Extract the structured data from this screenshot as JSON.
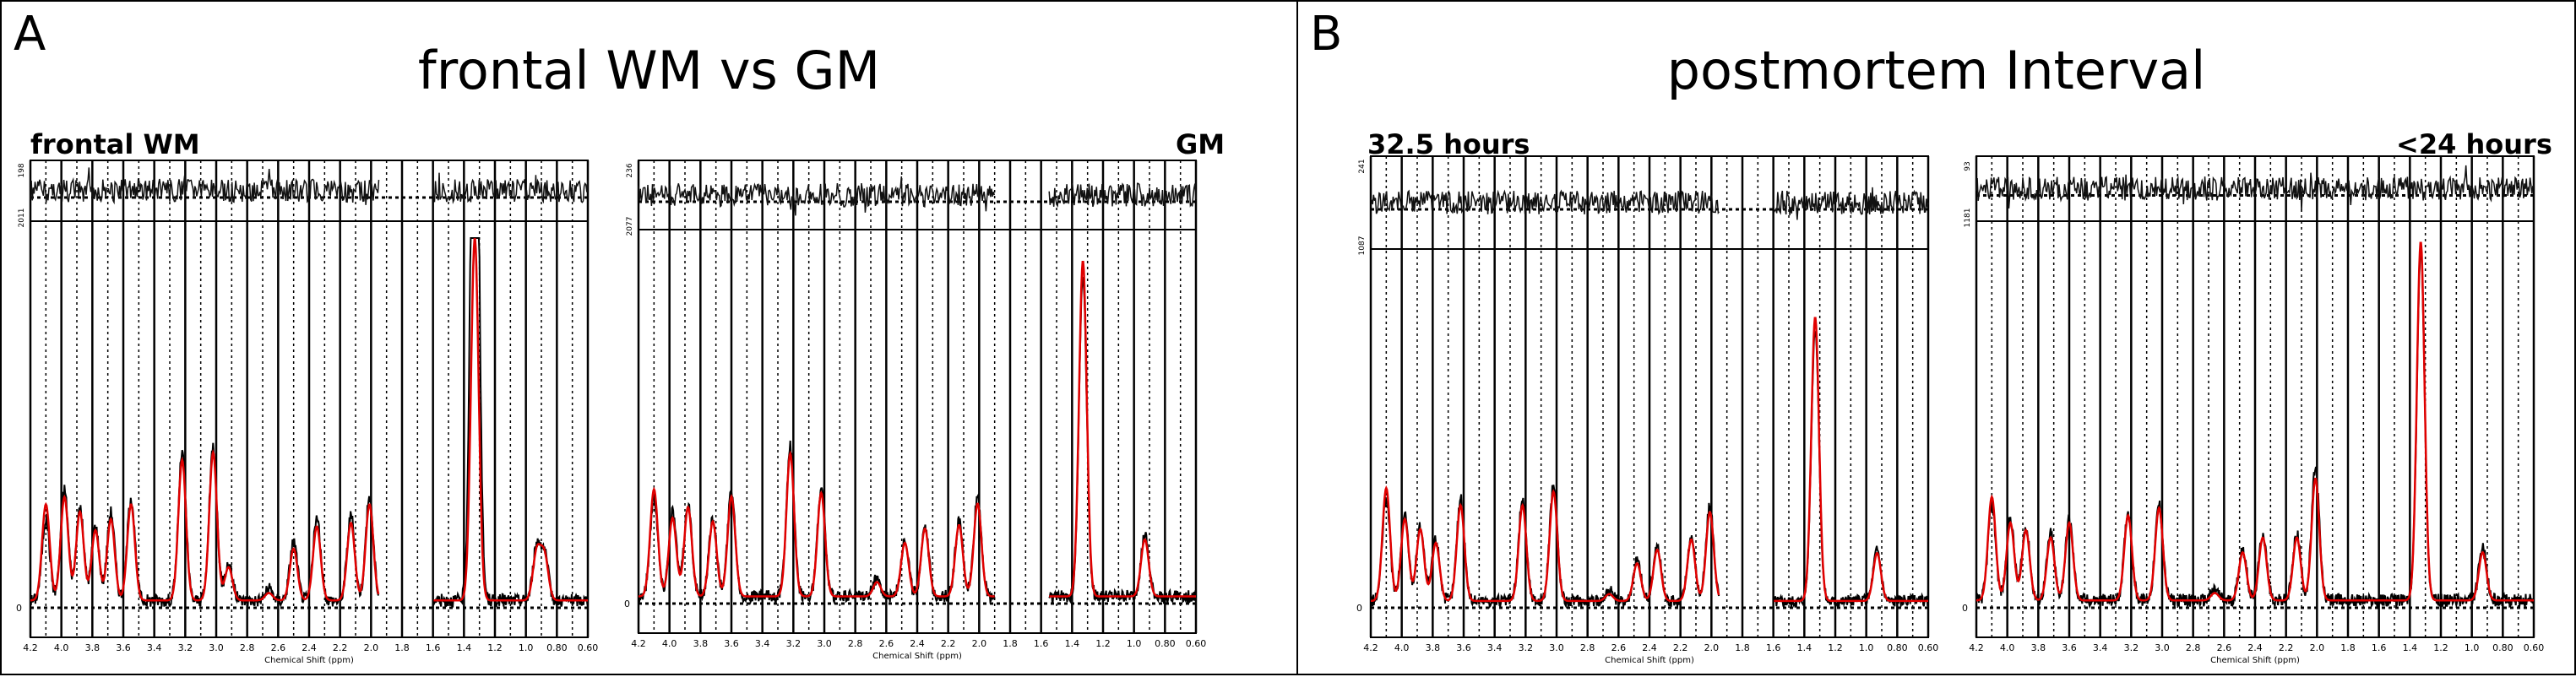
{
  "panels": [
    {
      "letter": "A",
      "title": "frontal WM vs GM"
    },
    {
      "letter": "B",
      "title": "postmortem Interval"
    }
  ],
  "chart_data": [
    {
      "type": "line",
      "subtitle": "frontal WM",
      "xlabel": "Chemical Shift (ppm)",
      "xlim": [
        4.2,
        0.6
      ],
      "x_ticks": [
        "4.2",
        "4.0",
        "3.8",
        "3.6",
        "3.4",
        "3.2",
        "3.0",
        "2.8",
        "2.6",
        "2.4",
        "2.2",
        "2.0",
        "1.8",
        "1.6",
        "1.4",
        "1.2",
        "1.0",
        "0.80",
        "0.60"
      ],
      "residual_ticks": [
        "198",
        "2011"
      ],
      "y_ticks": [
        "0"
      ],
      "gap": [
        1.95,
        1.6
      ],
      "series": [
        {
          "color": "#000000",
          "peaks": [
            [
              4.1,
              0.22
            ],
            [
              3.98,
              0.3
            ],
            [
              3.88,
              0.25
            ],
            [
              3.78,
              0.2
            ],
            [
              3.68,
              0.24
            ],
            [
              3.55,
              0.28
            ],
            [
              3.22,
              0.4
            ],
            [
              3.02,
              0.42
            ],
            [
              2.92,
              0.1
            ],
            [
              2.66,
              0.03
            ],
            [
              2.5,
              0.16
            ],
            [
              2.35,
              0.22
            ],
            [
              2.13,
              0.23
            ],
            [
              2.01,
              0.28
            ],
            [
              1.33,
              0.96
            ],
            [
              1.33,
              0.96
            ],
            [
              0.93,
              0.14
            ],
            [
              0.88,
              0.12
            ]
          ]
        },
        {
          "color": "#e00000",
          "peaks": [
            [
              4.1,
              0.26
            ],
            [
              3.98,
              0.28
            ],
            [
              3.88,
              0.24
            ],
            [
              3.78,
              0.19
            ],
            [
              3.68,
              0.22
            ],
            [
              3.55,
              0.26
            ],
            [
              3.22,
              0.38
            ],
            [
              3.02,
              0.4
            ],
            [
              2.92,
              0.09
            ],
            [
              2.66,
              0.02
            ],
            [
              2.5,
              0.14
            ],
            [
              2.35,
              0.2
            ],
            [
              2.13,
              0.21
            ],
            [
              2.01,
              0.26
            ],
            [
              1.33,
              0.98
            ],
            [
              0.93,
              0.13
            ],
            [
              0.88,
              0.12
            ]
          ]
        }
      ]
    },
    {
      "type": "line",
      "subtitle": "GM",
      "xlabel": "Chemical Shift (ppm)",
      "xlim": [
        4.2,
        0.6
      ],
      "x_ticks": [
        "4.2",
        "4.0",
        "3.8",
        "3.6",
        "3.4",
        "3.2",
        "3.0",
        "2.8",
        "2.6",
        "2.4",
        "2.2",
        "2.0",
        "1.8",
        "1.6",
        "1.4",
        "1.2",
        "1.0",
        "0.80",
        "0.60"
      ],
      "residual_ticks": [
        "236",
        "2077"
      ],
      "y_ticks": [
        "0"
      ],
      "gap": [
        1.9,
        1.55
      ],
      "series": [
        {
          "color": "#000000",
          "peaks": [
            [
              4.1,
              0.28
            ],
            [
              3.98,
              0.24
            ],
            [
              3.88,
              0.26
            ],
            [
              3.72,
              0.22
            ],
            [
              3.6,
              0.3
            ],
            [
              3.22,
              0.42
            ],
            [
              3.02,
              0.3
            ],
            [
              2.66,
              0.05
            ],
            [
              2.48,
              0.16
            ],
            [
              2.35,
              0.2
            ],
            [
              2.13,
              0.21
            ],
            [
              2.01,
              0.28
            ],
            [
              1.33,
              0.9
            ],
            [
              0.93,
              0.17
            ]
          ]
        },
        {
          "color": "#e00000",
          "peaks": [
            [
              4.1,
              0.3
            ],
            [
              3.98,
              0.22
            ],
            [
              3.88,
              0.25
            ],
            [
              3.72,
              0.21
            ],
            [
              3.6,
              0.28
            ],
            [
              3.22,
              0.4
            ],
            [
              3.02,
              0.29
            ],
            [
              2.66,
              0.04
            ],
            [
              2.48,
              0.15
            ],
            [
              2.35,
              0.19
            ],
            [
              2.13,
              0.2
            ],
            [
              2.01,
              0.26
            ],
            [
              1.33,
              0.94
            ],
            [
              0.93,
              0.16
            ]
          ]
        }
      ]
    },
    {
      "type": "line",
      "subtitle": "32.5 hours",
      "xlabel": "Chemical Shift (ppm)",
      "xlim": [
        4.2,
        0.6
      ],
      "x_ticks": [
        "4.2",
        "4.0",
        "3.8",
        "3.6",
        "3.4",
        "3.2",
        "3.0",
        "2.8",
        "2.6",
        "2.4",
        "2.2",
        "2.0",
        "1.8",
        "1.6",
        "1.4",
        "1.2",
        "1.0",
        "0.80",
        "0.60"
      ],
      "residual_ticks": [
        "241",
        "1087"
      ],
      "y_ticks": [
        "0"
      ],
      "gap": [
        1.95,
        1.6
      ],
      "series": [
        {
          "color": "#000000",
          "peaks": [
            [
              4.1,
              0.3
            ],
            [
              3.98,
              0.25
            ],
            [
              3.88,
              0.22
            ],
            [
              3.78,
              0.18
            ],
            [
              3.62,
              0.3
            ],
            [
              3.22,
              0.3
            ],
            [
              3.02,
              0.34
            ],
            [
              2.66,
              0.03
            ],
            [
              2.48,
              0.12
            ],
            [
              2.35,
              0.16
            ],
            [
              2.13,
              0.19
            ],
            [
              2.01,
              0.28
            ],
            [
              1.33,
              0.8
            ],
            [
              0.93,
              0.15
            ]
          ]
        },
        {
          "color": "#e00000",
          "peaks": [
            [
              4.1,
              0.33
            ],
            [
              3.98,
              0.24
            ],
            [
              3.88,
              0.21
            ],
            [
              3.78,
              0.17
            ],
            [
              3.62,
              0.28
            ],
            [
              3.22,
              0.28
            ],
            [
              3.02,
              0.32
            ],
            [
              2.66,
              0.02
            ],
            [
              2.48,
              0.11
            ],
            [
              2.35,
              0.15
            ],
            [
              2.13,
              0.18
            ],
            [
              2.01,
              0.26
            ],
            [
              1.33,
              0.83
            ],
            [
              0.93,
              0.14
            ]
          ]
        }
      ]
    },
    {
      "type": "line",
      "subtitle": "<24 hours",
      "xlabel": "Chemical Shift (ppm)",
      "xlim": [
        4.2,
        0.6
      ],
      "x_ticks": [
        "4.2",
        "4.0",
        "3.8",
        "3.6",
        "3.4",
        "3.2",
        "3.0",
        "2.8",
        "2.6",
        "2.4",
        "2.2",
        "2.0",
        "1.8",
        "1.6",
        "1.4",
        "1.2",
        "1.0",
        "0.80",
        "0.60"
      ],
      "residual_ticks": [
        "93",
        "1181"
      ],
      "y_ticks": [
        "0"
      ],
      "gap": [
        null,
        null
      ],
      "series": [
        {
          "color": "#000000",
          "peaks": [
            [
              4.1,
              0.26
            ],
            [
              3.98,
              0.22
            ],
            [
              3.88,
              0.2
            ],
            [
              3.72,
              0.18
            ],
            [
              3.6,
              0.22
            ],
            [
              3.22,
              0.24
            ],
            [
              3.02,
              0.26
            ],
            [
              2.66,
              0.03
            ],
            [
              2.48,
              0.14
            ],
            [
              2.35,
              0.18
            ],
            [
              2.13,
              0.18
            ],
            [
              2.01,
              0.36
            ],
            [
              1.33,
              0.95
            ],
            [
              0.93,
              0.14
            ]
          ]
        },
        {
          "color": "#e00000",
          "peaks": [
            [
              4.1,
              0.28
            ],
            [
              3.98,
              0.21
            ],
            [
              3.88,
              0.19
            ],
            [
              3.72,
              0.17
            ],
            [
              3.6,
              0.21
            ],
            [
              3.22,
              0.23
            ],
            [
              3.02,
              0.25
            ],
            [
              2.66,
              0.02
            ],
            [
              2.48,
              0.13
            ],
            [
              2.35,
              0.17
            ],
            [
              2.13,
              0.17
            ],
            [
              2.01,
              0.33
            ],
            [
              1.33,
              0.97
            ],
            [
              0.93,
              0.13
            ]
          ]
        }
      ]
    }
  ]
}
